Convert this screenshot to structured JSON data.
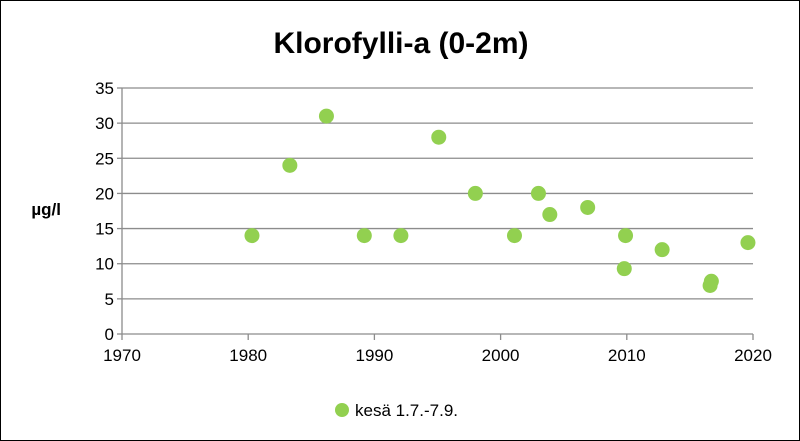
{
  "chart_data": {
    "type": "scatter",
    "title": "Klorofylli-a (0-2m)",
    "xlabel": "",
    "ylabel": "µg/l",
    "xlim": [
      1970,
      2020
    ],
    "ylim": [
      0,
      35
    ],
    "xticks": [
      1970,
      1980,
      1990,
      2000,
      2010,
      2020
    ],
    "yticks": [
      0,
      5,
      10,
      15,
      20,
      25,
      30,
      35
    ],
    "grid": "horizontal",
    "legend_position": "bottom",
    "series": [
      {
        "name": "kesä 1.7.-7.9.",
        "color": "#92d050",
        "points": [
          {
            "x": 1980.3,
            "y": 14
          },
          {
            "x": 1983.3,
            "y": 24
          },
          {
            "x": 1986.2,
            "y": 31
          },
          {
            "x": 1989.2,
            "y": 14
          },
          {
            "x": 1992.1,
            "y": 14
          },
          {
            "x": 1995.1,
            "y": 28
          },
          {
            "x": 1998.0,
            "y": 20
          },
          {
            "x": 2001.1,
            "y": 14
          },
          {
            "x": 2003.0,
            "y": 20
          },
          {
            "x": 2003.9,
            "y": 17
          },
          {
            "x": 2006.9,
            "y": 18
          },
          {
            "x": 2009.9,
            "y": 14
          },
          {
            "x": 2009.8,
            "y": 9.3
          },
          {
            "x": 2012.8,
            "y": 12
          },
          {
            "x": 2016.7,
            "y": 7.5
          },
          {
            "x": 2016.6,
            "y": 6.9
          },
          {
            "x": 2019.6,
            "y": 13
          }
        ]
      }
    ]
  }
}
